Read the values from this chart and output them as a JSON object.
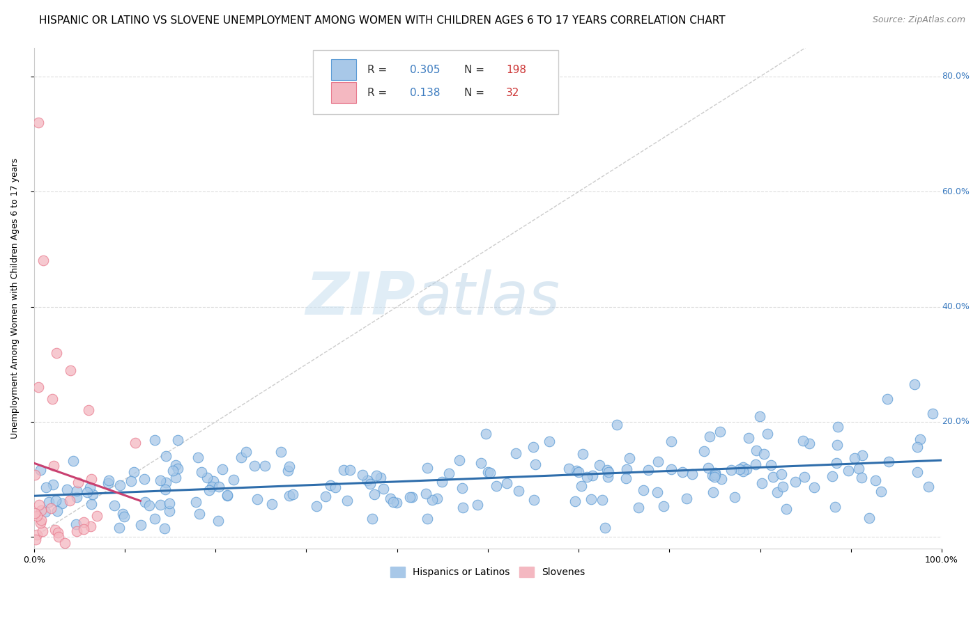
{
  "title": "HISPANIC OR LATINO VS SLOVENE UNEMPLOYMENT AMONG WOMEN WITH CHILDREN AGES 6 TO 17 YEARS CORRELATION CHART",
  "source": "Source: ZipAtlas.com",
  "ylabel": "Unemployment Among Women with Children Ages 6 to 17 years",
  "xlim": [
    0,
    1.0
  ],
  "ylim": [
    -0.02,
    0.85
  ],
  "xtick_positions": [
    0.0,
    0.1,
    0.2,
    0.3,
    0.4,
    0.5,
    0.6,
    0.7,
    0.8,
    0.9,
    1.0
  ],
  "xtick_labels": [
    "0.0%",
    "",
    "",
    "",
    "",
    "",
    "",
    "",
    "",
    "",
    "100.0%"
  ],
  "ytick_positions": [
    0.0,
    0.2,
    0.4,
    0.6,
    0.8
  ],
  "ytick_labels": [
    "",
    "20.0%",
    "40.0%",
    "60.0%",
    "80.0%"
  ],
  "blue_color": "#a8c8e8",
  "blue_edge": "#5b9bd5",
  "pink_color": "#f4b8c1",
  "pink_edge": "#e87a8e",
  "blue_line_color": "#2e6dab",
  "pink_line_color": "#c94070",
  "diag_color": "#cccccc",
  "R_blue": 0.305,
  "N_blue": 198,
  "R_pink": 0.138,
  "N_pink": 32,
  "legend_labels": [
    "Hispanics or Latinos",
    "Slovenes"
  ],
  "watermark_zip": "ZIP",
  "watermark_atlas": "atlas",
  "background_color": "#ffffff",
  "grid_color": "#dddddd",
  "title_fontsize": 11,
  "source_fontsize": 9,
  "axis_label_fontsize": 9,
  "tick_fontsize": 9,
  "legend_fontsize": 10,
  "stat_color": "#3a7abf",
  "n_color": "#cc3333",
  "blue_seed": 42,
  "pink_seed": 99
}
